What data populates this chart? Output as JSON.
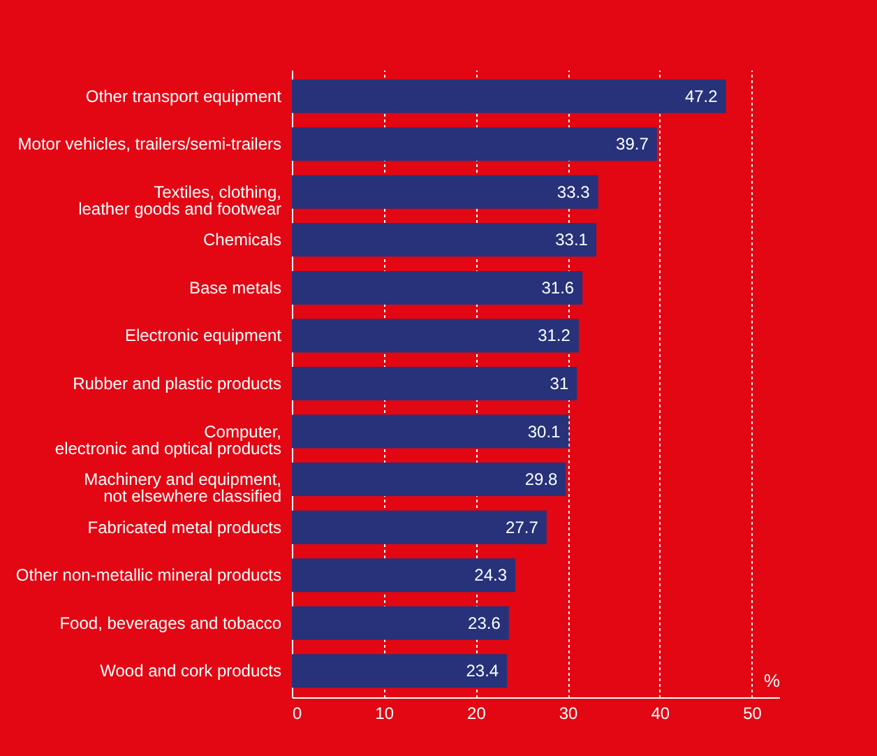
{
  "chart_data": {
    "type": "bar",
    "orientation": "horizontal",
    "xlabel": "%",
    "categories": [
      "Other transport equipment",
      "Motor vehicles, trailers/semi-trailers",
      "Textiles, clothing,\nleather goods and footwear",
      "Chemicals",
      "Base metals",
      "Electronic equipment",
      "Rubber and plastic products",
      "Computer,\nelectronic and optical products",
      "Machinery and equipment,\nnot elsewhere classified",
      "Fabricated metal products",
      "Other non-metallic mineral products",
      "Food, beverages and tobacco",
      "Wood and cork products"
    ],
    "values": [
      47.2,
      39.7,
      33.3,
      33.1,
      31.6,
      31.2,
      31,
      30.1,
      29.8,
      27.7,
      24.3,
      23.6,
      23.4
    ],
    "color": "#27327a",
    "xlim": [
      0,
      53
    ],
    "xticks": [
      0,
      10,
      20,
      30,
      40,
      50
    ],
    "grid": "x",
    "data_labels": true
  }
}
